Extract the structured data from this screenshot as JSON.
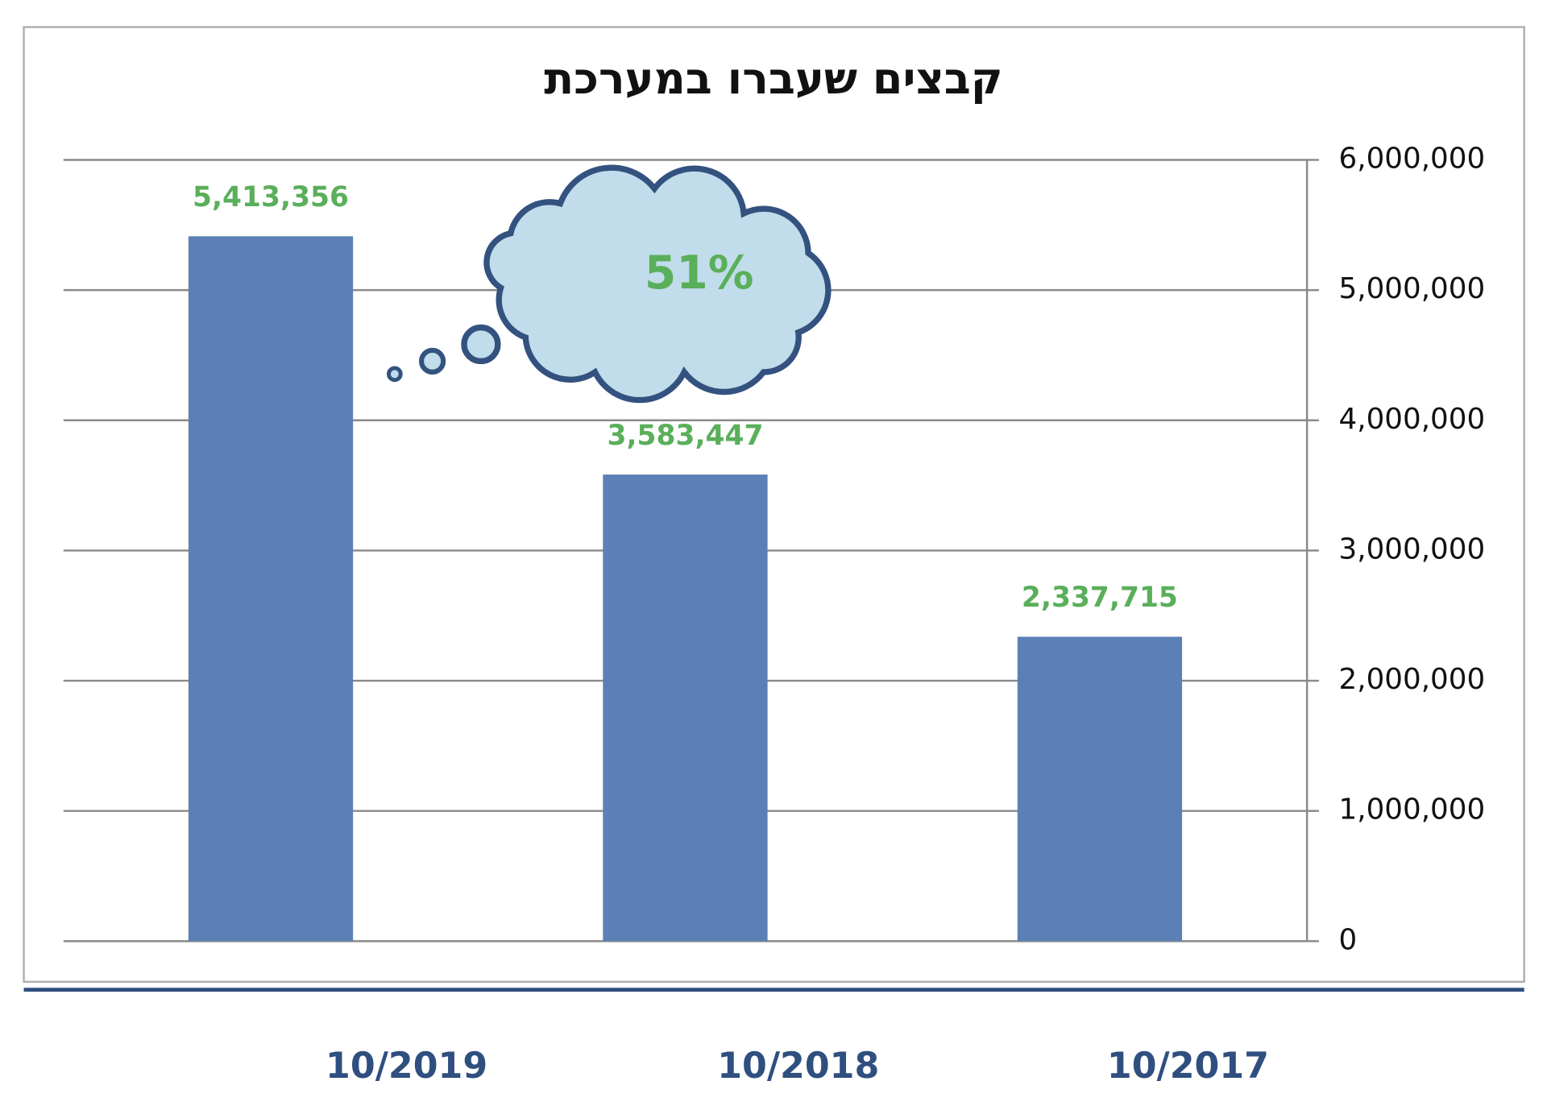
{
  "chart_data": {
    "type": "bar",
    "title": "קבצים שעברו במערכת",
    "categories": [
      "10/2019",
      "10/2018",
      "10/2017"
    ],
    "values": [
      5413356,
      3583447,
      2337715
    ],
    "value_labels": [
      "5,413,356",
      "3,583,447",
      "2,337,715"
    ],
    "color": "#5b80b6",
    "value_label_color": "#5aaf5a",
    "annotation": "51%",
    "ylim": [
      0,
      6000000
    ],
    "yticks": [
      0,
      {
        "value": 1000000,
        "label": "1,000,000"
      },
      {
        "value": 2000000,
        "label": "2,000,000"
      },
      {
        "value": 3000000,
        "label": "3,000,000"
      },
      {
        "value": 4000000,
        "label": "4,000,000"
      },
      {
        "value": 5000000,
        "label": "5,000,000"
      },
      {
        "value": 6000000,
        "label": "6,000,000"
      }
    ],
    "y_axis_side": "right",
    "grid": true
  }
}
